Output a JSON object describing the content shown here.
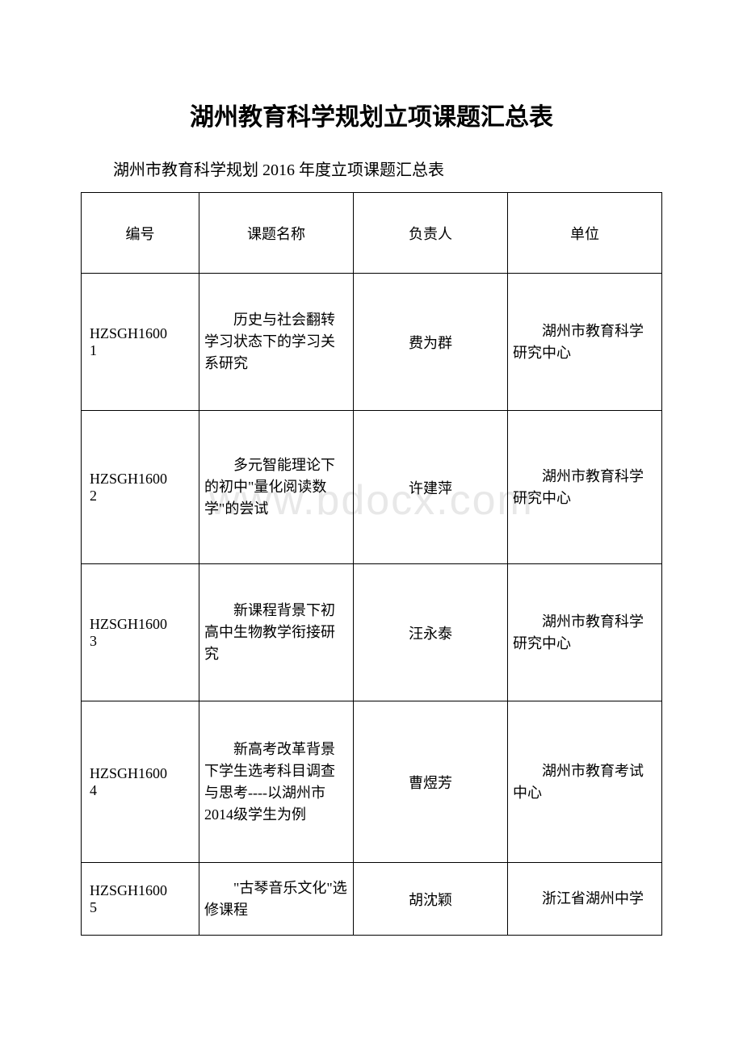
{
  "title": "湖州教育科学规划立项课题汇总表",
  "subtitle": "湖州市教育科学规划 2016 年度立项课题汇总表",
  "watermark": "www.bdocx.com",
  "table": {
    "headers": {
      "id": "编号",
      "topic": "课题名称",
      "person": "负责人",
      "unit": "单位"
    },
    "rows": [
      {
        "index": "1",
        "code": "HZSGH1600",
        "topic": "历史与社会翻转学习状态下的学习关系研究",
        "person": "费为群",
        "unit": "湖州市教育科学研究中心"
      },
      {
        "index": "2",
        "code": "HZSGH1600",
        "topic": "多元智能理论下的初中\"量化阅读数学\"的尝试",
        "person": "许建萍",
        "unit": "湖州市教育科学研究中心"
      },
      {
        "index": "3",
        "code": "HZSGH1600",
        "topic": "新课程背景下初高中生物教学衔接研究",
        "person": "汪永泰",
        "unit": "湖州市教育科学研究中心"
      },
      {
        "index": "4",
        "code": "HZSGH1600",
        "topic": "新高考改革背景下学生选考科目调查与思考----以湖州市 2014级学生为例",
        "person": "曹煜芳",
        "unit": "湖州市教育考试中心"
      },
      {
        "index": "5",
        "code": "HZSGH1600",
        "topic": "\"古琴音乐文化\"选修课程",
        "person": "胡沈颖",
        "unit": "浙江省湖州中学"
      }
    ]
  },
  "colors": {
    "background": "#ffffff",
    "text": "#000000",
    "border": "#000000",
    "watermark": "#e8e8e8"
  }
}
